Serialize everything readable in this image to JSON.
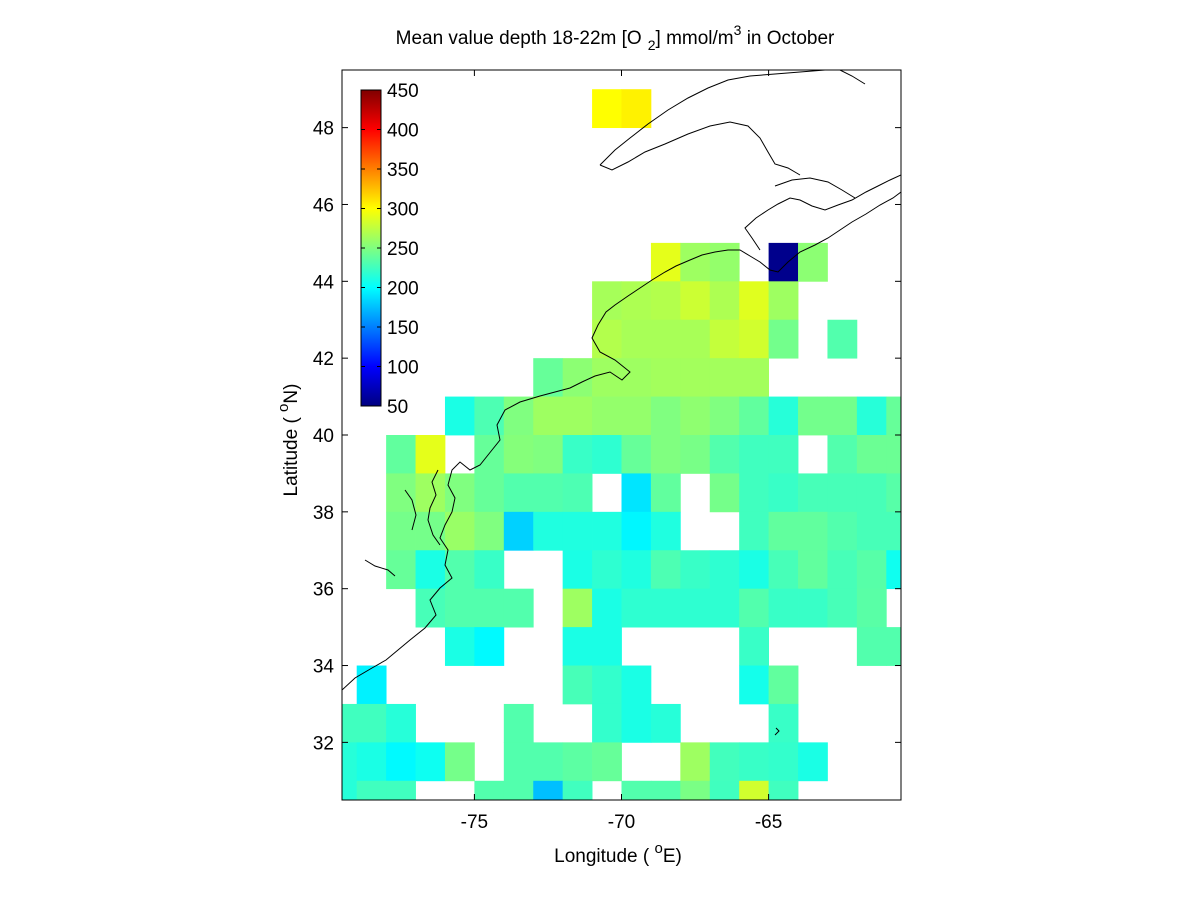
{
  "chart_data": {
    "type": "heatmap",
    "title": {
      "main": "Mean value depth 18-22m [O",
      "sub": "2",
      "mid": "] mmol/m",
      "sup": "3",
      "end": " in October"
    },
    "xlabel": {
      "pre": "Longitude ( ",
      "sup": "o",
      "post": "E)"
    },
    "ylabel": {
      "pre": "Latitude ( ",
      "sup": "o",
      "post": "N)"
    },
    "xlim": [
      -79.5,
      -60.5
    ],
    "ylim": [
      30.5,
      49.5
    ],
    "xticks": [
      -75,
      -70,
      -65
    ],
    "xtick_labels": [
      "-75",
      "-70",
      "-65"
    ],
    "yticks": [
      32,
      34,
      36,
      38,
      40,
      42,
      44,
      46,
      48
    ],
    "ytick_labels": [
      "32",
      "34",
      "36",
      "38",
      "40",
      "42",
      "44",
      "46",
      "48"
    ],
    "cell_size_deg": 1,
    "colorbar": {
      "min": 50,
      "max": 450,
      "colormap": "jet",
      "ticks": [
        50,
        100,
        150,
        200,
        250,
        300,
        350,
        400,
        450
      ],
      "tick_labels": [
        "50",
        "100",
        "150",
        "200",
        "250",
        "300",
        "350",
        "400",
        "450"
      ]
    },
    "cells": [
      [
        -70.5,
        48.5,
        300
      ],
      [
        -69.5,
        48.5,
        305
      ],
      [
        -68.5,
        44.5,
        290
      ],
      [
        -67.5,
        44.5,
        262
      ],
      [
        -66.5,
        44.5,
        258
      ],
      [
        -64.5,
        44.5,
        55
      ],
      [
        -63.5,
        44.5,
        255
      ],
      [
        -70.5,
        43.5,
        265
      ],
      [
        -69.5,
        43.5,
        268
      ],
      [
        -68.5,
        43.5,
        270
      ],
      [
        -67.5,
        43.5,
        280
      ],
      [
        -66.5,
        43.5,
        268
      ],
      [
        -65.5,
        43.5,
        288
      ],
      [
        -64.5,
        43.5,
        262
      ],
      [
        -70.5,
        42.5,
        270
      ],
      [
        -69.5,
        42.5,
        266
      ],
      [
        -68.5,
        42.5,
        266
      ],
      [
        -67.5,
        42.5,
        266
      ],
      [
        -66.5,
        42.5,
        277
      ],
      [
        -65.5,
        42.5,
        282
      ],
      [
        -64.5,
        42.5,
        245
      ],
      [
        -62.5,
        42.5,
        232
      ],
      [
        -72.5,
        41.5,
        240
      ],
      [
        -71.5,
        41.5,
        255
      ],
      [
        -70.5,
        41.5,
        262
      ],
      [
        -69.5,
        41.5,
        262
      ],
      [
        -68.5,
        41.5,
        264
      ],
      [
        -67.5,
        41.5,
        264
      ],
      [
        -66.5,
        41.5,
        264
      ],
      [
        -65.5,
        41.5,
        264
      ],
      [
        -75.5,
        40.5,
        210
      ],
      [
        -74.5,
        40.5,
        230
      ],
      [
        -73.5,
        40.5,
        250
      ],
      [
        -72.5,
        40.5,
        262
      ],
      [
        -71.5,
        40.5,
        262
      ],
      [
        -70.5,
        40.5,
        258
      ],
      [
        -69.5,
        40.5,
        258
      ],
      [
        -68.5,
        40.5,
        250
      ],
      [
        -67.5,
        40.5,
        256
      ],
      [
        -66.5,
        40.5,
        250
      ],
      [
        -65.5,
        40.5,
        238
      ],
      [
        -64.5,
        40.5,
        215
      ],
      [
        -63.5,
        40.5,
        245
      ],
      [
        -62.5,
        40.5,
        245
      ],
      [
        -61.5,
        40.5,
        215
      ],
      [
        -60.5,
        40.5,
        240
      ],
      [
        -77.5,
        39.5,
        238
      ],
      [
        -76.5,
        39.5,
        290
      ],
      [
        -74.5,
        39.5,
        240
      ],
      [
        -73.5,
        39.5,
        252
      ],
      [
        -72.5,
        39.5,
        250
      ],
      [
        -71.5,
        39.5,
        222
      ],
      [
        -70.5,
        39.5,
        218
      ],
      [
        -69.5,
        39.5,
        240
      ],
      [
        -68.5,
        39.5,
        250
      ],
      [
        -67.5,
        39.5,
        247
      ],
      [
        -66.5,
        39.5,
        232
      ],
      [
        -65.5,
        39.5,
        225
      ],
      [
        -64.5,
        39.5,
        225
      ],
      [
        -62.5,
        39.5,
        232
      ],
      [
        -61.5,
        39.5,
        242
      ],
      [
        -60.5,
        39.5,
        242
      ],
      [
        -77.5,
        38.5,
        250
      ],
      [
        -76.5,
        38.5,
        262
      ],
      [
        -75.5,
        38.5,
        250
      ],
      [
        -74.5,
        38.5,
        240
      ],
      [
        -73.5,
        38.5,
        232
      ],
      [
        -72.5,
        38.5,
        232
      ],
      [
        -71.5,
        38.5,
        230
      ],
      [
        -69.5,
        38.5,
        190
      ],
      [
        -68.5,
        38.5,
        238
      ],
      [
        -66.5,
        38.5,
        246
      ],
      [
        -65.5,
        38.5,
        225
      ],
      [
        -64.5,
        38.5,
        222
      ],
      [
        -63.5,
        38.5,
        228
      ],
      [
        -62.5,
        38.5,
        228
      ],
      [
        -61.5,
        38.5,
        228
      ],
      [
        -60.5,
        38.5,
        234
      ],
      [
        -77.5,
        37.5,
        246
      ],
      [
        -76.5,
        37.5,
        246
      ],
      [
        -75.5,
        37.5,
        260
      ],
      [
        -74.5,
        37.5,
        250
      ],
      [
        -73.5,
        37.5,
        182
      ],
      [
        -72.5,
        37.5,
        212
      ],
      [
        -71.5,
        37.5,
        212
      ],
      [
        -70.5,
        37.5,
        212
      ],
      [
        -69.5,
        37.5,
        197
      ],
      [
        -68.5,
        37.5,
        212
      ],
      [
        -65.5,
        37.5,
        225
      ],
      [
        -64.5,
        37.5,
        238
      ],
      [
        -63.5,
        37.5,
        238
      ],
      [
        -62.5,
        37.5,
        232
      ],
      [
        -61.5,
        37.5,
        228
      ],
      [
        -60.5,
        37.5,
        228
      ],
      [
        -77.5,
        36.5,
        240
      ],
      [
        -76.5,
        36.5,
        210
      ],
      [
        -75.5,
        36.5,
        232
      ],
      [
        -74.5,
        36.5,
        222
      ],
      [
        -71.5,
        36.5,
        210
      ],
      [
        -70.5,
        36.5,
        218
      ],
      [
        -69.5,
        36.5,
        212
      ],
      [
        -68.5,
        36.5,
        230
      ],
      [
        -67.5,
        36.5,
        222
      ],
      [
        -66.5,
        36.5,
        218
      ],
      [
        -65.5,
        36.5,
        210
      ],
      [
        -64.5,
        36.5,
        228
      ],
      [
        -63.5,
        36.5,
        238
      ],
      [
        -62.5,
        36.5,
        228
      ],
      [
        -61.5,
        36.5,
        234
      ],
      [
        -60.5,
        36.5,
        206
      ],
      [
        -76.5,
        35.5,
        228
      ],
      [
        -75.5,
        35.5,
        232
      ],
      [
        -74.5,
        35.5,
        232
      ],
      [
        -73.5,
        35.5,
        232
      ],
      [
        -71.5,
        35.5,
        262
      ],
      [
        -70.5,
        35.5,
        210
      ],
      [
        -69.5,
        35.5,
        218
      ],
      [
        -68.5,
        35.5,
        218
      ],
      [
        -67.5,
        35.5,
        218
      ],
      [
        -66.5,
        35.5,
        218
      ],
      [
        -65.5,
        35.5,
        232
      ],
      [
        -64.5,
        35.5,
        222
      ],
      [
        -63.5,
        35.5,
        222
      ],
      [
        -62.5,
        35.5,
        228
      ],
      [
        -61.5,
        35.5,
        235
      ],
      [
        -75.5,
        34.5,
        210
      ],
      [
        -74.5,
        34.5,
        198
      ],
      [
        -71.5,
        34.5,
        210
      ],
      [
        -70.5,
        34.5,
        210
      ],
      [
        -65.5,
        34.5,
        222
      ],
      [
        -61.5,
        34.5,
        232
      ],
      [
        -60.5,
        34.5,
        232
      ],
      [
        -78.5,
        33.5,
        195
      ],
      [
        -71.5,
        33.5,
        228
      ],
      [
        -70.5,
        33.5,
        220
      ],
      [
        -69.5,
        33.5,
        210
      ],
      [
        -65.5,
        33.5,
        208
      ],
      [
        -64.5,
        33.5,
        238
      ],
      [
        -79.5,
        32.5,
        225
      ],
      [
        -78.5,
        32.5,
        225
      ],
      [
        -77.5,
        32.5,
        215
      ],
      [
        -73.5,
        32.5,
        232
      ],
      [
        -70.5,
        32.5,
        220
      ],
      [
        -69.5,
        32.5,
        210
      ],
      [
        -68.5,
        32.5,
        215
      ],
      [
        -64.5,
        32.5,
        222
      ],
      [
        -79.5,
        31.5,
        215
      ],
      [
        -78.5,
        31.5,
        210
      ],
      [
        -77.5,
        31.5,
        198
      ],
      [
        -76.5,
        31.5,
        205
      ],
      [
        -75.5,
        31.5,
        246
      ],
      [
        -73.5,
        31.5,
        232
      ],
      [
        -72.5,
        31.5,
        232
      ],
      [
        -71.5,
        31.5,
        236
      ],
      [
        -70.5,
        31.5,
        240
      ],
      [
        -67.5,
        31.5,
        262
      ],
      [
        -66.5,
        31.5,
        226
      ],
      [
        -65.5,
        31.5,
        222
      ],
      [
        -64.5,
        31.5,
        220
      ],
      [
        -63.5,
        31.5,
        210
      ],
      [
        -79.5,
        30.5,
        215
      ],
      [
        -78.5,
        30.5,
        225
      ],
      [
        -77.5,
        30.5,
        225
      ],
      [
        -74.5,
        30.5,
        232
      ],
      [
        -73.5,
        30.5,
        232
      ],
      [
        -72.5,
        30.5,
        175
      ],
      [
        -71.5,
        30.5,
        225
      ],
      [
        -69.5,
        30.5,
        232
      ],
      [
        -68.5,
        30.5,
        232
      ],
      [
        -67.5,
        30.5,
        248
      ],
      [
        -66.5,
        30.5,
        225
      ],
      [
        -65.5,
        30.5,
        282
      ],
      [
        -64.5,
        30.5,
        225
      ]
    ]
  }
}
